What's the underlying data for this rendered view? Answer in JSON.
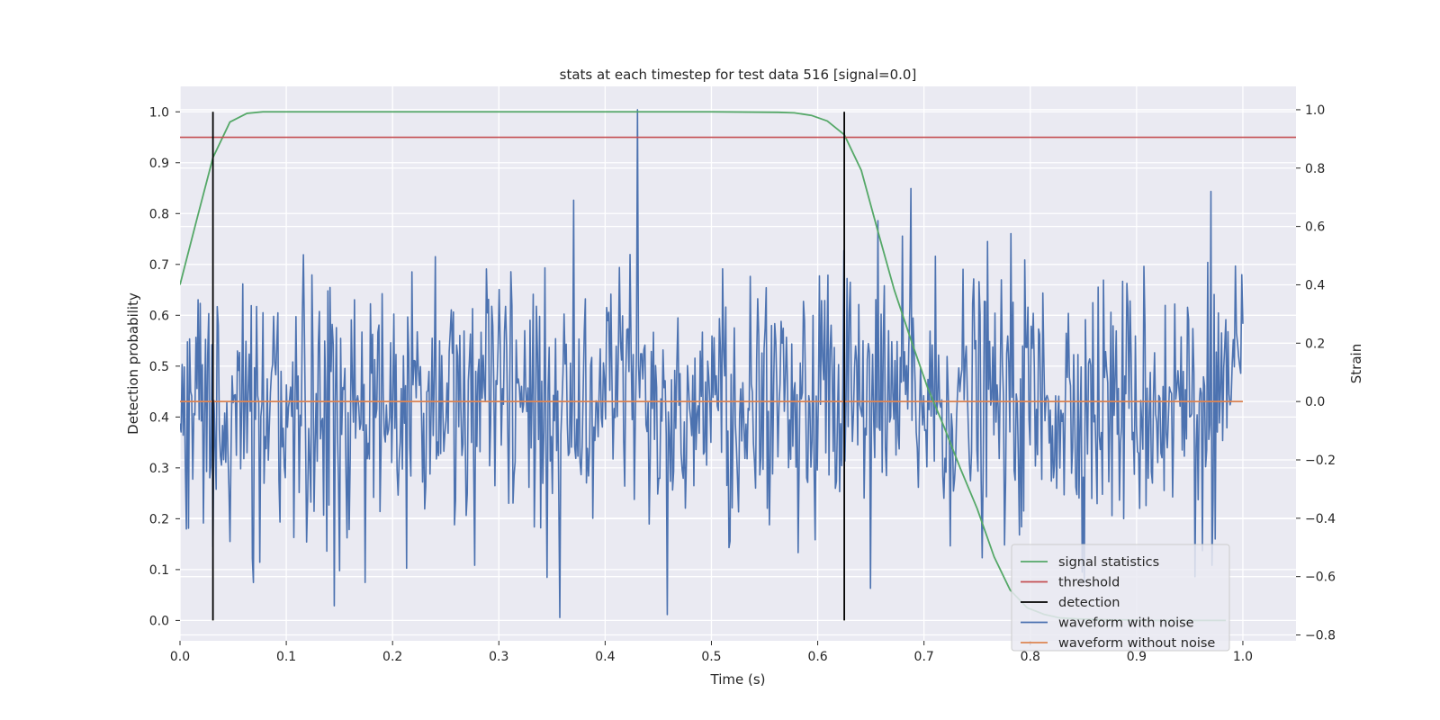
{
  "chart_data": {
    "type": "line",
    "title": "stats at each timestep for test data 516 [signal=0.0]",
    "xlabel": "Time (s)",
    "ylabel": "Detection probability",
    "y2label": "Strain",
    "xlim": [
      0.0,
      1.05
    ],
    "ylim": [
      -0.04,
      1.05
    ],
    "y2lim": [
      -0.82,
      1.08
    ],
    "xticks": [
      "0.0",
      "0.1",
      "0.2",
      "0.3",
      "0.4",
      "0.5",
      "0.6",
      "0.7",
      "0.8",
      "0.9",
      "1.0"
    ],
    "xtick_values": [
      0.0,
      0.1,
      0.2,
      0.3,
      0.4,
      0.5,
      0.6,
      0.7,
      0.8,
      0.9,
      1.0
    ],
    "yticks": [
      "0.0",
      "0.1",
      "0.2",
      "0.3",
      "0.4",
      "0.5",
      "0.6",
      "0.7",
      "0.8",
      "0.9",
      "1.0"
    ],
    "ytick_values": [
      0.0,
      0.1,
      0.2,
      0.3,
      0.4,
      0.5,
      0.6,
      0.7,
      0.8,
      0.9,
      1.0
    ],
    "y2ticks": [
      "−0.8",
      "−0.6",
      "−0.4",
      "−0.2",
      "0.0",
      "0.2",
      "0.4",
      "0.6",
      "0.8",
      "1.0"
    ],
    "y2tick_values": [
      -0.8,
      -0.6,
      -0.4,
      -0.2,
      0.0,
      0.2,
      0.4,
      0.6,
      0.8,
      1.0
    ],
    "grid": true,
    "legend_position": "lower-right",
    "series": [
      {
        "name": "signal statistics",
        "axis": "left",
        "color": "#55a868",
        "x": [
          0.0,
          0.016,
          0.031,
          0.047,
          0.063,
          0.078,
          0.094,
          0.2,
          0.3,
          0.4,
          0.5,
          0.563,
          0.578,
          0.594,
          0.609,
          0.625,
          0.641,
          0.656,
          0.672,
          0.688,
          0.703,
          0.719,
          0.734,
          0.75,
          0.766,
          0.781,
          0.797,
          0.813,
          0.828,
          0.844,
          0.86,
          0.875,
          0.891,
          0.906,
          0.922,
          0.938,
          0.953,
          0.969,
          0.984
        ],
        "values": [
          0.66,
          0.79,
          0.91,
          0.98,
          0.997,
          1.0,
          1.0,
          1.0,
          1.0,
          1.0,
          1.0,
          0.999,
          0.998,
          0.993,
          0.982,
          0.955,
          0.885,
          0.77,
          0.65,
          0.55,
          0.46,
          0.38,
          0.3,
          0.22,
          0.125,
          0.06,
          0.025,
          0.012,
          0.005,
          0.003,
          0.002,
          0.001,
          0.001,
          0.0,
          0.0,
          0.0,
          0.0,
          0.0,
          0.0
        ]
      },
      {
        "name": "threshold",
        "axis": "left",
        "color": "#c44e52",
        "x": [
          0.0,
          1.05
        ],
        "values": [
          0.95,
          0.95
        ]
      },
      {
        "name": "detection",
        "axis": "left",
        "color": "#000000",
        "segments": [
          {
            "x": 0.031,
            "y": [
              0.0,
              1.0
            ]
          },
          {
            "x": 0.625,
            "y": [
              0.0,
              1.0
            ]
          }
        ]
      },
      {
        "name": "waveform with noise",
        "axis": "right",
        "color": "#4c72b0",
        "x_range": [
          0.0,
          1.0
        ],
        "num_points": 1000,
        "noise_std": 0.22,
        "extremes": [
          {
            "x": 0.43,
            "y": 1.0
          },
          {
            "x": 0.357,
            "y": -0.74
          },
          {
            "x": 0.458,
            "y": -0.73
          },
          {
            "x": 0.688,
            "y": 0.73
          },
          {
            "x": 0.37,
            "y": 0.69
          },
          {
            "x": 0.97,
            "y": 0.72
          },
          {
            "x": 0.145,
            "y": -0.7
          },
          {
            "x": 0.65,
            "y": -0.64
          },
          {
            "x": 0.955,
            "y": -0.6
          }
        ]
      },
      {
        "name": "waveform without noise",
        "axis": "right",
        "color": "#dd8452",
        "x": [
          0.0,
          1.0
        ],
        "values": [
          0.0,
          0.0
        ]
      }
    ]
  }
}
